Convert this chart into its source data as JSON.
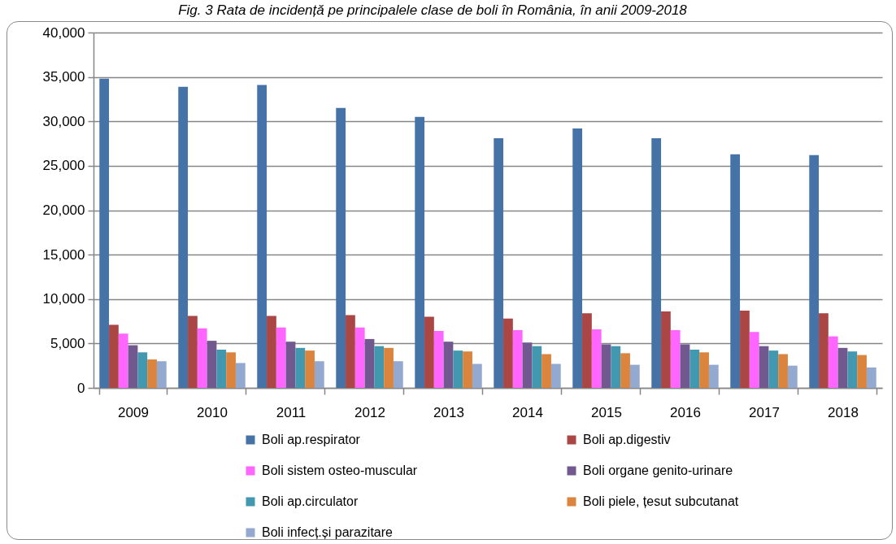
{
  "chart_data": {
    "type": "bar",
    "title": "Fig. 3 Rata de incidență pe principalele clase de boli în România, în anii 2009-2018",
    "categories": [
      "2009",
      "2010",
      "2011",
      "2012",
      "2013",
      "2014",
      "2015",
      "2016",
      "2017",
      "2018"
    ],
    "series": [
      {
        "name": "Boli ap.respirator",
        "color": "#4572a7",
        "values": [
          34800,
          33900,
          34100,
          31500,
          30500,
          28100,
          29200,
          28100,
          26300,
          26200
        ]
      },
      {
        "name": "Boli ap.digestiv",
        "color": "#aa4643",
        "values": [
          7100,
          8100,
          8100,
          8200,
          8000,
          7800,
          8400,
          8600,
          8700,
          8400
        ]
      },
      {
        "name": "Boli sistem osteo-muscular",
        "color": "#ff66ff",
        "values": [
          6100,
          6700,
          6800,
          6800,
          6400,
          6500,
          6600,
          6500,
          6300,
          5800
        ]
      },
      {
        "name": "Boli organe genito-urinare",
        "color": "#71588f",
        "values": [
          4800,
          5300,
          5200,
          5500,
          5200,
          5100,
          4900,
          4900,
          4700,
          4500
        ]
      },
      {
        "name": "Boli ap.circulator",
        "color": "#4198af",
        "values": [
          4000,
          4300,
          4500,
          4700,
          4200,
          4700,
          4700,
          4300,
          4200,
          4100
        ]
      },
      {
        "name": "Boli piele, țesut subcutanat",
        "color": "#db843d",
        "values": [
          3200,
          4000,
          4200,
          4500,
          4100,
          3800,
          3900,
          4000,
          3800,
          3700
        ]
      },
      {
        "name": "Boli infecț.și parazitare",
        "color": "#93a9cf",
        "values": [
          3000,
          2800,
          3000,
          3000,
          2700,
          2700,
          2600,
          2600,
          2500,
          2300
        ]
      }
    ],
    "ylim": [
      0,
      40000
    ],
    "yticks": [
      0,
      {
        "value": 5000,
        "label": "5,000"
      },
      {
        "value": 10000,
        "label": "10,000"
      },
      {
        "value": 15000,
        "label": "15,000"
      },
      {
        "value": 20000,
        "label": "20,000"
      },
      {
        "value": 25000,
        "label": "25,000"
      },
      {
        "value": 30000,
        "label": "30,000"
      },
      {
        "value": 35000,
        "label": "35,000"
      },
      {
        "value": 40000,
        "label": "40,000"
      }
    ],
    "grid": "y",
    "legend": "bottom"
  }
}
